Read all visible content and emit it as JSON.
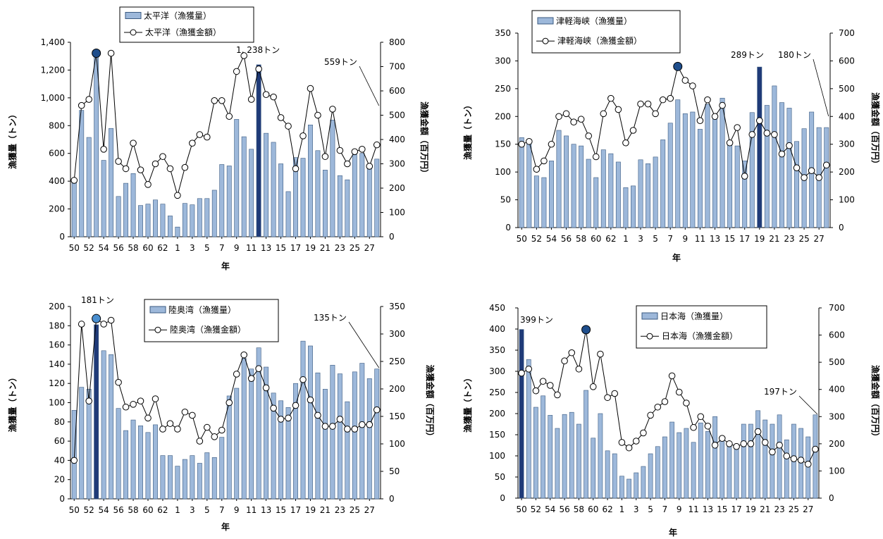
{
  "charts_layout": "2x2",
  "chart_data": [
    {
      "type": "bar+line",
      "title": "",
      "xlabel": "年",
      "ylabel": "漁獲量（トン）",
      "y2label": "漁獲金額（百万円）",
      "ylim": [
        0,
        1400
      ],
      "yticks": [
        "0",
        "200",
        "400",
        "600",
        "800",
        "1,000",
        "1,200",
        "1,400"
      ],
      "y2lim": [
        0,
        800
      ],
      "y2ticks": [
        "0",
        "100",
        "200",
        "300",
        "400",
        "500",
        "600",
        "700",
        "800"
      ],
      "x_tick_labels": [
        "50",
        "52",
        "54",
        "56",
        "58",
        "60",
        "62",
        "1",
        "3",
        "5",
        "7",
        "9",
        "11",
        "13",
        "15",
        "17",
        "19",
        "21",
        "23",
        "25",
        "27"
      ],
      "categories": [
        "S50",
        "S51",
        "S52",
        "S53",
        "S54",
        "S55",
        "S56",
        "S57",
        "S58",
        "S59",
        "S60",
        "S61",
        "S62",
        "S63",
        "H1",
        "H2",
        "H3",
        "H4",
        "H5",
        "H6",
        "H7",
        "H8",
        "H9",
        "H10",
        "H11",
        "H12",
        "H13",
        "H14",
        "H15",
        "H16",
        "H17",
        "H18",
        "H19",
        "H20",
        "H21",
        "H22",
        "H23",
        "H24",
        "H25",
        "H26",
        "H27",
        "H28"
      ],
      "legend": {
        "position": "top-left",
        "bar": "太平洋（漁獲量）",
        "line": "太平洋（漁獲金額）"
      },
      "series": [
        {
          "name": "太平洋（漁獲量）",
          "axis": "left",
          "type": "bar",
          "values": [
            400,
            910,
            715,
            1320,
            550,
            780,
            290,
            385,
            455,
            225,
            235,
            265,
            235,
            150,
            70,
            240,
            230,
            275,
            275,
            335,
            520,
            510,
            845,
            720,
            630,
            1238,
            745,
            680,
            525,
            325,
            570,
            565,
            805,
            620,
            480,
            840,
            440,
            410,
            590,
            600,
            510,
            559
          ]
        },
        {
          "name": "太平洋（漁獲金額）",
          "axis": "right",
          "type": "line",
          "values": [
            232,
            540,
            565,
            755,
            360,
            755,
            310,
            280,
            385,
            275,
            215,
            300,
            330,
            280,
            170,
            285,
            385,
            420,
            410,
            560,
            560,
            495,
            680,
            745,
            565,
            690,
            585,
            575,
            490,
            455,
            280,
            415,
            610,
            500,
            330,
            525,
            355,
            300,
            350,
            360,
            290,
            378
          ]
        }
      ],
      "annotations": [
        {
          "text": "1, 238トン",
          "category": "H12"
        },
        {
          "text": "559トン",
          "category": "H28"
        }
      ],
      "highlights": [
        {
          "category": "S53",
          "series": "line",
          "color": "#1f4e8c"
        },
        {
          "category": "H12",
          "series": "bar",
          "color": "#1f3a78"
        }
      ],
      "grid": false
    },
    {
      "type": "bar+line",
      "title": "",
      "xlabel": "年",
      "ylabel": "漁獲量（トン）",
      "y2label": "漁獲金額（百万円）",
      "ylim": [
        0,
        350
      ],
      "yticks": [
        "0",
        "50",
        "100",
        "150",
        "200",
        "250",
        "300",
        "350"
      ],
      "y2lim": [
        0,
        700
      ],
      "y2ticks": [
        "0",
        "100",
        "200",
        "300",
        "400",
        "500",
        "600",
        "700"
      ],
      "x_tick_labels": [
        "50",
        "52",
        "54",
        "56",
        "58",
        "60",
        "62",
        "1",
        "3",
        "5",
        "7",
        "9",
        "11",
        "13",
        "15",
        "17",
        "19",
        "21",
        "23",
        "25",
        "27"
      ],
      "categories": [
        "S50",
        "S51",
        "S52",
        "S53",
        "S54",
        "S55",
        "S56",
        "S57",
        "S58",
        "S59",
        "S60",
        "S61",
        "S62",
        "S63",
        "H1",
        "H2",
        "H3",
        "H4",
        "H5",
        "H6",
        "H7",
        "H8",
        "H9",
        "H10",
        "H11",
        "H12",
        "H13",
        "H14",
        "H15",
        "H16",
        "H17",
        "H18",
        "H19",
        "H20",
        "H21",
        "H22",
        "H23",
        "H24",
        "H25",
        "H26",
        "H27",
        "H28"
      ],
      "legend": {
        "position": "top-left",
        "bar": "津軽海峡（漁獲量）",
        "line": "津軽海峡（漁獲金額）"
      },
      "series": [
        {
          "name": "津軽海峡（漁獲量）",
          "axis": "left",
          "type": "bar",
          "values": [
            162,
            157,
            93,
            90,
            120,
            175,
            165,
            150,
            147,
            123,
            90,
            140,
            133,
            118,
            72,
            75,
            122,
            115,
            127,
            158,
            188,
            230,
            205,
            208,
            177,
            222,
            200,
            233,
            150,
            147,
            120,
            207,
            289,
            220,
            255,
            225,
            215,
            155,
            178,
            208,
            180,
            180
          ]
        },
        {
          "name": "津軽海峡（漁獲金額）",
          "axis": "right",
          "type": "line",
          "values": [
            300,
            310,
            210,
            240,
            300,
            400,
            410,
            380,
            390,
            330,
            255,
            410,
            465,
            425,
            305,
            350,
            445,
            445,
            410,
            460,
            465,
            580,
            530,
            510,
            385,
            460,
            400,
            440,
            305,
            360,
            185,
            335,
            385,
            340,
            335,
            265,
            295,
            215,
            180,
            205,
            180,
            225
          ]
        }
      ],
      "annotations": [
        {
          "text": "289トン",
          "category": "H19"
        },
        {
          "text": "180トン",
          "category": "H28"
        }
      ],
      "highlights": [
        {
          "category": "H8",
          "series": "line",
          "color": "#1f4e8c"
        },
        {
          "category": "H19",
          "series": "bar",
          "color": "#1f3a78"
        }
      ],
      "grid": false
    },
    {
      "type": "bar+line",
      "title": "",
      "xlabel": "年",
      "ylabel": "漁獲量（トン）",
      "y2label": "漁獲金額（百万円）",
      "ylim": [
        0,
        200
      ],
      "yticks": [
        "0",
        "20",
        "40",
        "60",
        "80",
        "100",
        "120",
        "140",
        "160",
        "180",
        "200"
      ],
      "y2lim": [
        0,
        350
      ],
      "y2ticks": [
        "0",
        "50",
        "100",
        "150",
        "200",
        "250",
        "300",
        "350"
      ],
      "x_tick_labels": [
        "50",
        "52",
        "54",
        "56",
        "58",
        "60",
        "62",
        "1",
        "3",
        "5",
        "7",
        "9",
        "11",
        "13",
        "15",
        "17",
        "19",
        "21",
        "23",
        "25",
        "27"
      ],
      "categories": [
        "S50",
        "S51",
        "S52",
        "S53",
        "S54",
        "S55",
        "S56",
        "S57",
        "S58",
        "S59",
        "S60",
        "S61",
        "S62",
        "S63",
        "H1",
        "H2",
        "H3",
        "H4",
        "H5",
        "H6",
        "H7",
        "H8",
        "H9",
        "H10",
        "H11",
        "H12",
        "H13",
        "H14",
        "H15",
        "H16",
        "H17",
        "H18",
        "H19",
        "H20",
        "H21",
        "H22",
        "H23",
        "H24",
        "H25",
        "H26",
        "H27",
        "H28"
      ],
      "legend": {
        "position": "top-center",
        "bar": "陸奥湾（漁獲量）",
        "line": "陸奥湾（漁獲金額）"
      },
      "series": [
        {
          "name": "陸奥湾（漁獲量）",
          "axis": "left",
          "type": "bar",
          "values": [
            92,
            116,
            114,
            181,
            154,
            150,
            94,
            71,
            82,
            76,
            69,
            77,
            45,
            45,
            34,
            41,
            45,
            37,
            48,
            43,
            64,
            107,
            115,
            146,
            135,
            157,
            137,
            110,
            102,
            95,
            120,
            164,
            159,
            131,
            114,
            139,
            130,
            101,
            132,
            141,
            125,
            135
          ]
        },
        {
          "name": "陸奥湾（漁獲金額）",
          "axis": "right",
          "type": "line",
          "values": [
            70,
            318,
            178,
            328,
            318,
            325,
            212,
            167,
            172,
            178,
            147,
            182,
            127,
            137,
            127,
            158,
            152,
            105,
            130,
            113,
            125,
            175,
            227,
            262,
            219,
            237,
            202,
            165,
            145,
            147,
            170,
            217,
            180,
            152,
            132,
            132,
            145,
            127,
            127,
            135,
            135,
            162
          ]
        }
      ],
      "annotations": [
        {
          "text": "181トン",
          "category": "S53"
        },
        {
          "text": "135トン",
          "category": "H28"
        }
      ],
      "highlights": [
        {
          "category": "S53",
          "series": "line",
          "color": "#4a8fd0"
        },
        {
          "category": "S53",
          "series": "bar",
          "color": "#1f3a78"
        }
      ],
      "grid": false
    },
    {
      "type": "bar+line",
      "title": "",
      "xlabel": "年",
      "ylabel": "漁獲量（トン）",
      "y2label": "漁獲金額（百万円）",
      "ylim": [
        0,
        450
      ],
      "yticks": [
        "0",
        "50",
        "100",
        "150",
        "200",
        "250",
        "300",
        "350",
        "400",
        "450"
      ],
      "y2lim": [
        0,
        700
      ],
      "y2ticks": [
        "0",
        "100",
        "200",
        "300",
        "400",
        "500",
        "600",
        "700"
      ],
      "x_tick_labels": [
        "50",
        "52",
        "54",
        "56",
        "58",
        "60",
        "62",
        "1",
        "3",
        "5",
        "7",
        "9",
        "11",
        "13",
        "15",
        "17",
        "19",
        "21",
        "23",
        "25",
        "27"
      ],
      "categories": [
        "S50",
        "S51",
        "S52",
        "S53",
        "S54",
        "S55",
        "S56",
        "S57",
        "S58",
        "S59",
        "S60",
        "S61",
        "S62",
        "S63",
        "H1",
        "H2",
        "H3",
        "H4",
        "H5",
        "H6",
        "H7",
        "H8",
        "H9",
        "H10",
        "H11",
        "H12",
        "H13",
        "H14",
        "H15",
        "H16",
        "H17",
        "H18",
        "H19",
        "H20",
        "H21",
        "H22",
        "H23",
        "H24",
        "H25",
        "H26",
        "H27",
        "H28"
      ],
      "legend": {
        "position": "top-center",
        "bar": "日本海（漁獲量）",
        "line": "日本海（漁獲金額）"
      },
      "series": [
        {
          "name": "日本海（漁獲量）",
          "axis": "left",
          "type": "bar",
          "values": [
            399,
            328,
            215,
            242,
            196,
            165,
            198,
            203,
            175,
            255,
            142,
            200,
            112,
            105,
            52,
            45,
            60,
            75,
            105,
            122,
            145,
            180,
            155,
            165,
            132,
            178,
            158,
            193,
            140,
            128,
            128,
            175,
            175,
            207,
            185,
            175,
            197,
            138,
            175,
            165,
            145,
            197
          ]
        },
        {
          "name": "日本海（漁獲金額）",
          "axis": "right",
          "type": "line",
          "values": [
            460,
            475,
            395,
            430,
            415,
            380,
            505,
            535,
            475,
            620,
            410,
            530,
            370,
            385,
            205,
            185,
            210,
            240,
            305,
            335,
            355,
            450,
            390,
            350,
            260,
            300,
            265,
            195,
            220,
            200,
            190,
            200,
            200,
            245,
            205,
            170,
            195,
            155,
            145,
            140,
            125,
            180
          ]
        }
      ],
      "annotations": [
        {
          "text": "399トン",
          "category": "S50"
        },
        {
          "text": "197トン",
          "category": "H28"
        }
      ],
      "highlights": [
        {
          "category": "S59",
          "series": "line",
          "color": "#1f4e8c"
        },
        {
          "category": "S50",
          "series": "bar",
          "color": "#1f3a78"
        }
      ],
      "grid": false
    }
  ],
  "colors": {
    "bar_fill": "#9db8da",
    "bar_stroke": "#3a5a80",
    "highlight_bar": "#1f3a78",
    "line": "#000000",
    "marker_fill": "#ffffff"
  }
}
